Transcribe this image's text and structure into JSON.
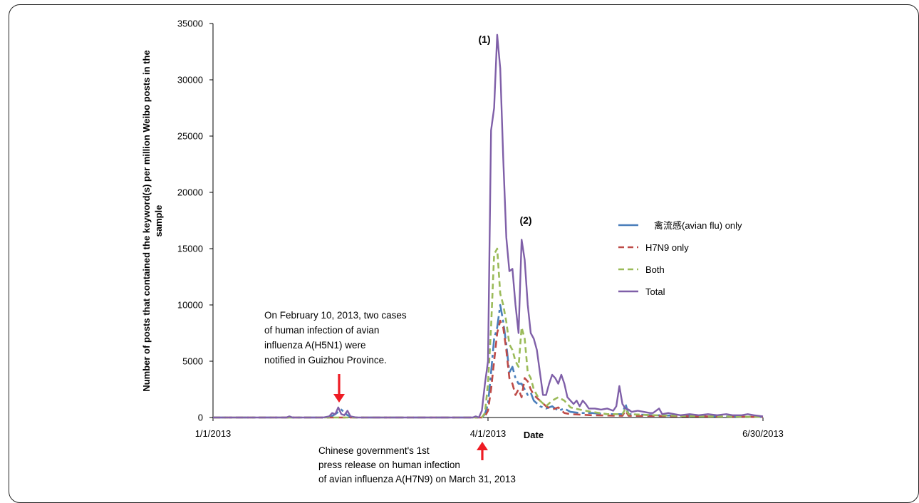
{
  "chart_data": {
    "type": "line",
    "xlabel": "Date",
    "ylabel": [
      "Number of posts that contained the keyword(s) per million Weibo posts in the",
      "sample"
    ],
    "ylim": [
      0,
      35000
    ],
    "xlim": [
      "2013-01-01",
      "2013-06-30"
    ],
    "x_ticks": [
      "1/1/2013",
      "4/1/2013",
      "6/30/2013"
    ],
    "y_ticks": [
      "0",
      "5000",
      "10000",
      "15000",
      "20000",
      "25000",
      "30000",
      "35000"
    ],
    "grid": false,
    "legend_position": "right",
    "series": [
      {
        "name": "禽流感(avian flu) only",
        "color": "#4a7ebb",
        "dash": "18 5 4 5",
        "points": [
          [
            "2013-01-01",
            0
          ],
          [
            "2013-02-08",
            0
          ],
          [
            "2013-02-10",
            300
          ],
          [
            "2013-02-12",
            700
          ],
          [
            "2013-02-14",
            200
          ],
          [
            "2013-02-16",
            0
          ],
          [
            "2013-03-30",
            0
          ],
          [
            "2013-03-31",
            300
          ],
          [
            "2013-04-01",
            1200
          ],
          [
            "2013-04-02",
            4000
          ],
          [
            "2013-04-03",
            7000
          ],
          [
            "2013-04-04",
            8000
          ],
          [
            "2013-04-05",
            10000
          ],
          [
            "2013-04-06",
            8500
          ],
          [
            "2013-04-07",
            6500
          ],
          [
            "2013-04-08",
            4000
          ],
          [
            "2013-04-09",
            4500
          ],
          [
            "2013-04-10",
            3500
          ],
          [
            "2013-04-11",
            3000
          ],
          [
            "2013-04-12",
            3000
          ],
          [
            "2013-04-13",
            2500
          ],
          [
            "2013-04-14",
            2000
          ],
          [
            "2013-04-15",
            2200
          ],
          [
            "2013-04-16",
            1500
          ],
          [
            "2013-04-18",
            1000
          ],
          [
            "2013-04-20",
            800
          ],
          [
            "2013-04-22",
            1000
          ],
          [
            "2013-04-24",
            600
          ],
          [
            "2013-04-26",
            800
          ],
          [
            "2013-04-28",
            500
          ],
          [
            "2013-05-01",
            400
          ],
          [
            "2013-05-05",
            400
          ],
          [
            "2013-05-10",
            300
          ],
          [
            "2013-05-15",
            300
          ],
          [
            "2013-05-16",
            1200
          ],
          [
            "2013-05-17",
            300
          ],
          [
            "2013-05-25",
            200
          ],
          [
            "2013-06-05",
            150
          ],
          [
            "2013-06-15",
            100
          ],
          [
            "2013-06-30",
            50
          ]
        ]
      },
      {
        "name": "H7N9 only",
        "color": "#be4b48",
        "dash": "10 6",
        "points": [
          [
            "2013-01-01",
            0
          ],
          [
            "2013-03-30",
            0
          ],
          [
            "2013-03-31",
            100
          ],
          [
            "2013-04-01",
            600
          ],
          [
            "2013-04-02",
            2500
          ],
          [
            "2013-04-03",
            5000
          ],
          [
            "2013-04-04",
            7500
          ],
          [
            "2013-04-05",
            8600
          ],
          [
            "2013-04-06",
            8000
          ],
          [
            "2013-04-07",
            6000
          ],
          [
            "2013-04-08",
            3500
          ],
          [
            "2013-04-09",
            3000
          ],
          [
            "2013-04-10",
            2000
          ],
          [
            "2013-04-11",
            2500
          ],
          [
            "2013-04-12",
            1800
          ],
          [
            "2013-04-13",
            3500
          ],
          [
            "2013-04-14",
            3200
          ],
          [
            "2013-04-15",
            2500
          ],
          [
            "2013-04-16",
            2000
          ],
          [
            "2013-04-18",
            1500
          ],
          [
            "2013-04-20",
            1000
          ],
          [
            "2013-04-22",
            700
          ],
          [
            "2013-04-24",
            900
          ],
          [
            "2013-04-26",
            400
          ],
          [
            "2013-04-28",
            300
          ],
          [
            "2013-05-05",
            200
          ],
          [
            "2013-05-15",
            150
          ],
          [
            "2013-05-16",
            600
          ],
          [
            "2013-05-17",
            150
          ],
          [
            "2013-06-10",
            100
          ],
          [
            "2013-06-30",
            50
          ]
        ]
      },
      {
        "name": "Both",
        "color": "#9bbb59",
        "dash": "8 5",
        "points": [
          [
            "2013-01-01",
            0
          ],
          [
            "2013-03-30",
            0
          ],
          [
            "2013-03-31",
            400
          ],
          [
            "2013-04-01",
            3000
          ],
          [
            "2013-04-02",
            8000
          ],
          [
            "2013-04-03",
            14500
          ],
          [
            "2013-04-04",
            15000
          ],
          [
            "2013-04-05",
            11000
          ],
          [
            "2013-04-06",
            10000
          ],
          [
            "2013-04-07",
            8500
          ],
          [
            "2013-04-08",
            6500
          ],
          [
            "2013-04-09",
            6000
          ],
          [
            "2013-04-10",
            5000
          ],
          [
            "2013-04-11",
            4500
          ],
          [
            "2013-04-12",
            8000
          ],
          [
            "2013-04-13",
            7000
          ],
          [
            "2013-04-14",
            4000
          ],
          [
            "2013-04-15",
            3500
          ],
          [
            "2013-04-16",
            2500
          ],
          [
            "2013-04-18",
            1500
          ],
          [
            "2013-04-20",
            1000
          ],
          [
            "2013-04-22",
            1500
          ],
          [
            "2013-04-24",
            1800
          ],
          [
            "2013-04-26",
            1500
          ],
          [
            "2013-04-28",
            900
          ],
          [
            "2013-05-01",
            700
          ],
          [
            "2013-05-05",
            500
          ],
          [
            "2013-05-10",
            300
          ],
          [
            "2013-05-15",
            300
          ],
          [
            "2013-05-16",
            800
          ],
          [
            "2013-05-17",
            300
          ],
          [
            "2013-05-25",
            200
          ],
          [
            "2013-06-10",
            100
          ],
          [
            "2013-06-30",
            50
          ]
        ]
      },
      {
        "name": "Total",
        "color": "#7f5fa8",
        "dash": "",
        "points": [
          [
            "2013-01-01",
            0
          ],
          [
            "2013-01-25",
            0
          ],
          [
            "2013-01-26",
            100
          ],
          [
            "2013-01-27",
            0
          ],
          [
            "2013-02-06",
            0
          ],
          [
            "2013-02-08",
            100
          ],
          [
            "2013-02-09",
            400
          ],
          [
            "2013-02-10",
            300
          ],
          [
            "2013-02-11",
            900
          ],
          [
            "2013-02-12",
            300
          ],
          [
            "2013-02-13",
            200
          ],
          [
            "2013-02-14",
            600
          ],
          [
            "2013-02-15",
            100
          ],
          [
            "2013-02-17",
            0
          ],
          [
            "2013-03-27",
            0
          ],
          [
            "2013-03-28",
            100
          ],
          [
            "2013-03-29",
            0
          ],
          [
            "2013-03-30",
            600
          ],
          [
            "2013-03-31",
            3000
          ],
          [
            "2013-04-01",
            5000
          ],
          [
            "2013-04-02",
            25500
          ],
          [
            "2013-04-03",
            27500
          ],
          [
            "2013-04-04",
            34000
          ],
          [
            "2013-04-05",
            31000
          ],
          [
            "2013-04-06",
            23000
          ],
          [
            "2013-04-07",
            16000
          ],
          [
            "2013-04-08",
            13000
          ],
          [
            "2013-04-09",
            13200
          ],
          [
            "2013-04-10",
            10000
          ],
          [
            "2013-04-11",
            7500
          ],
          [
            "2013-04-12",
            15800
          ],
          [
            "2013-04-13",
            14000
          ],
          [
            "2013-04-14",
            10000
          ],
          [
            "2013-04-15",
            7500
          ],
          [
            "2013-04-16",
            7000
          ],
          [
            "2013-04-17",
            6000
          ],
          [
            "2013-04-18",
            4000
          ],
          [
            "2013-04-19",
            2000
          ],
          [
            "2013-04-20",
            2000
          ],
          [
            "2013-04-21",
            3000
          ],
          [
            "2013-04-22",
            3800
          ],
          [
            "2013-04-23",
            3500
          ],
          [
            "2013-04-24",
            3000
          ],
          [
            "2013-04-25",
            3800
          ],
          [
            "2013-04-26",
            3000
          ],
          [
            "2013-04-27",
            1800
          ],
          [
            "2013-04-28",
            1500
          ],
          [
            "2013-04-29",
            1200
          ],
          [
            "2013-04-30",
            1500
          ],
          [
            "2013-05-01",
            1000
          ],
          [
            "2013-05-02",
            1500
          ],
          [
            "2013-05-03",
            1200
          ],
          [
            "2013-05-04",
            800
          ],
          [
            "2013-05-06",
            800
          ],
          [
            "2013-05-08",
            700
          ],
          [
            "2013-05-10",
            800
          ],
          [
            "2013-05-12",
            600
          ],
          [
            "2013-05-13",
            1000
          ],
          [
            "2013-05-14",
            2800
          ],
          [
            "2013-05-15",
            1200
          ],
          [
            "2013-05-16",
            800
          ],
          [
            "2013-05-17",
            700
          ],
          [
            "2013-05-18",
            500
          ],
          [
            "2013-05-20",
            600
          ],
          [
            "2013-05-22",
            500
          ],
          [
            "2013-05-24",
            400
          ],
          [
            "2013-05-25",
            400
          ],
          [
            "2013-05-27",
            800
          ],
          [
            "2013-05-28",
            300
          ],
          [
            "2013-05-30",
            400
          ],
          [
            "2013-06-01",
            300
          ],
          [
            "2013-06-03",
            200
          ],
          [
            "2013-06-06",
            300
          ],
          [
            "2013-06-09",
            200
          ],
          [
            "2013-06-12",
            300
          ],
          [
            "2013-06-15",
            200
          ],
          [
            "2013-06-18",
            300
          ],
          [
            "2013-06-20",
            200
          ],
          [
            "2013-06-23",
            200
          ],
          [
            "2013-06-25",
            300
          ],
          [
            "2013-06-27",
            200
          ],
          [
            "2013-06-30",
            100
          ]
        ]
      }
    ],
    "annotations": [
      {
        "id": "peak-1",
        "text": "(1)"
      },
      {
        "id": "peak-2",
        "text": "(2)"
      },
      {
        "id": "h5n1-note",
        "lines": [
          "On February 10, 2013, two cases",
          "of human infection of avian",
          "influenza A(H5N1) were",
          "notified in Guizhou Province."
        ]
      },
      {
        "id": "h7n9-note",
        "lines": [
          "Chinese government's 1st",
          "press release on human infection",
          "of avian influenza A(H7N9) on March 31, 2013"
        ]
      }
    ],
    "arrow_color": "#ee1c24"
  }
}
